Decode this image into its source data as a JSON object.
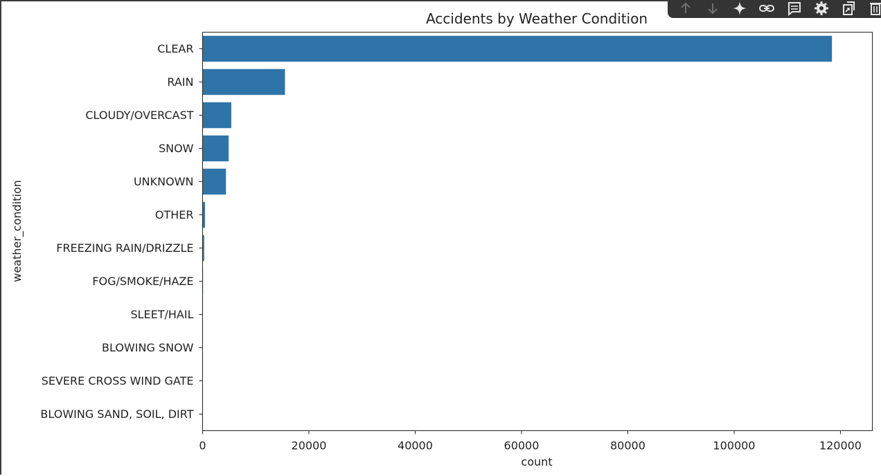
{
  "toolbar": {
    "buttons": [
      {
        "icon": "arrow-up-icon"
      },
      {
        "icon": "arrow-down-icon"
      },
      {
        "icon": "sparkle-icon"
      },
      {
        "icon": "link-icon"
      },
      {
        "icon": "comment-icon"
      },
      {
        "icon": "gear-icon"
      },
      {
        "icon": "mirror-cell-icon"
      },
      {
        "icon": "trash-icon"
      }
    ]
  },
  "chart_data": {
    "type": "bar",
    "orientation": "horizontal",
    "title": "Accidents by Weather Condition",
    "xlabel": "count",
    "ylabel": "weather_condition",
    "xlim": [
      0,
      126000
    ],
    "xticks": [
      0,
      20000,
      40000,
      60000,
      80000,
      100000,
      120000
    ],
    "bar_color": "#2f74a8",
    "grid": false,
    "categories": [
      "CLEAR",
      "RAIN",
      "CLOUDY/OVERCAST",
      "SNOW",
      "UNKNOWN",
      "OTHER",
      "FREEZING RAIN/DRIZZLE",
      "FOG/SMOKE/HAZE",
      "SLEET/HAIL",
      "BLOWING SNOW",
      "SEVERE CROSS WIND GATE",
      "BLOWING SAND, SOIL, DIRT"
    ],
    "values": [
      118400,
      15500,
      5400,
      4900,
      4400,
      450,
      300,
      80,
      60,
      30,
      20,
      10
    ]
  }
}
